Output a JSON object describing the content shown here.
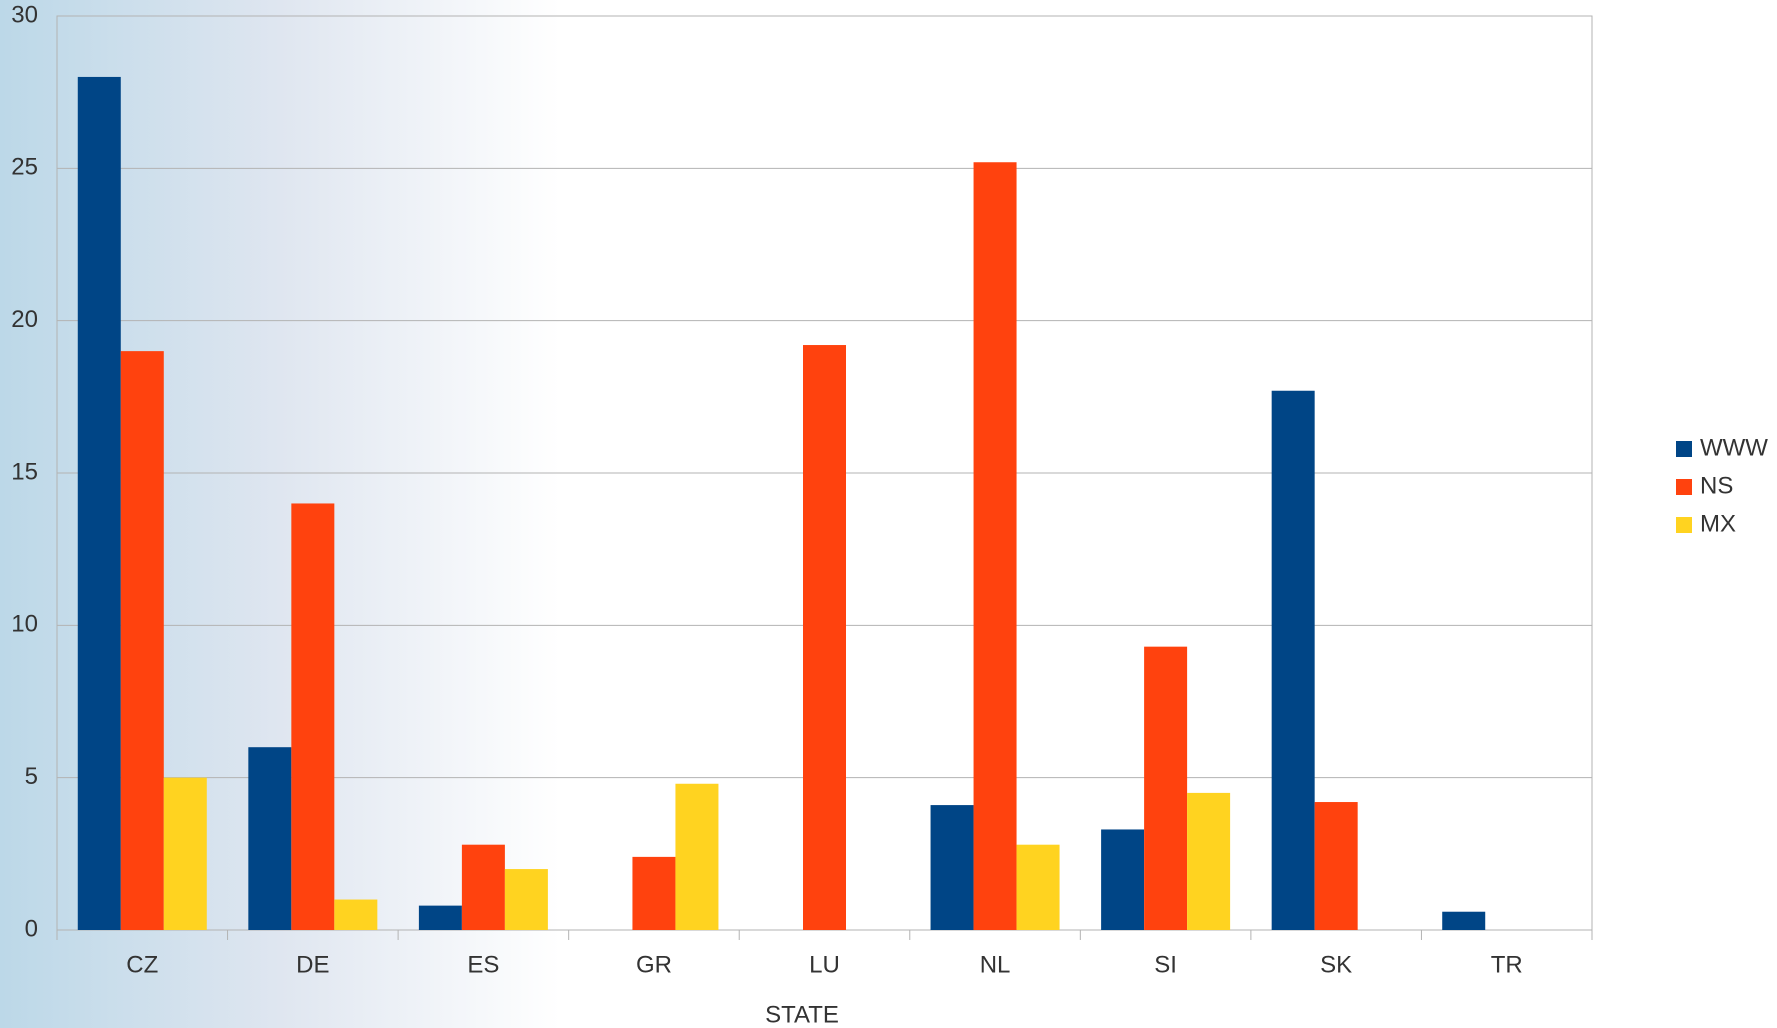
{
  "chart_data": {
    "type": "bar",
    "x_label": "STATE",
    "categories": [
      "CZ",
      "DE",
      "ES",
      "GR",
      "LU",
      "NL",
      "SI",
      "SK",
      "TR"
    ],
    "series": [
      {
        "name": "WWW",
        "color": "#004586",
        "values": [
          28,
          6,
          0.8,
          0,
          0,
          4.1,
          3.3,
          17.7,
          0.6
        ]
      },
      {
        "name": "NS",
        "color": "#ff420e",
        "values": [
          19,
          14,
          2.8,
          2.4,
          19.2,
          25.2,
          9.3,
          4.2,
          0
        ]
      },
      {
        "name": "MX",
        "color": "#ffd320",
        "values": [
          5,
          1,
          2,
          4.8,
          0,
          2.8,
          4.5,
          0,
          0
        ]
      }
    ],
    "ylim": [
      0,
      30
    ],
    "yticks": [
      0,
      5,
      10,
      15,
      20,
      25,
      30
    ],
    "grid": true,
    "legend": "right"
  }
}
